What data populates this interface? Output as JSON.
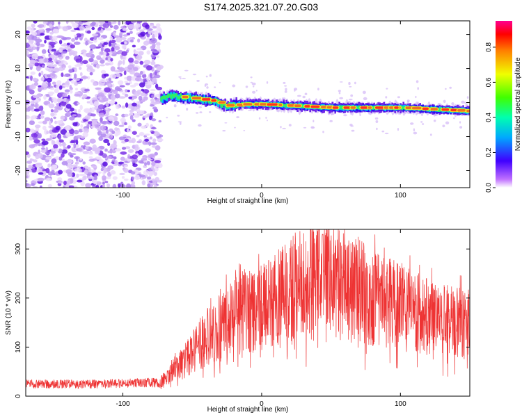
{
  "title": "S174.2025.321.07.20.G03",
  "chart_data": [
    {
      "type": "heatmap",
      "name": "spectrogram",
      "xlabel": "Height of straight line (km)",
      "ylabel": "Frequency (Hz)",
      "xlim": [
        -170,
        150
      ],
      "ylim": [
        -25,
        24
      ],
      "xticks": [
        -100,
        0,
        100
      ],
      "yticks": [
        -20,
        -10,
        0,
        10,
        20
      ],
      "noise_region_x": [
        -170,
        -73
      ],
      "ridge": [
        {
          "x": -73,
          "f": 1.0
        },
        {
          "x": -65,
          "f": 2.0
        },
        {
          "x": -55,
          "f": 1.5
        },
        {
          "x": -45,
          "f": 1.0
        },
        {
          "x": -35,
          "f": 0.5
        },
        {
          "x": -25,
          "f": -1.0
        },
        {
          "x": -15,
          "f": -0.5
        },
        {
          "x": 0,
          "f": -0.5
        },
        {
          "x": 25,
          "f": -1.0
        },
        {
          "x": 50,
          "f": -1.5
        },
        {
          "x": 75,
          "f": -1.5
        },
        {
          "x": 100,
          "f": -1.5
        },
        {
          "x": 125,
          "f": -2.0
        },
        {
          "x": 150,
          "f": -2.5
        }
      ],
      "colorbar": {
        "label": "Normalized spectral amplitude",
        "min": 0.0,
        "max": 0.95,
        "ticks": [
          "0.0",
          "0.2",
          "0.4",
          "0.6",
          "0.8"
        ]
      }
    },
    {
      "type": "line",
      "name": "snr",
      "xlabel": "Height of straight line (km)",
      "ylabel": "SNR (10 * v/v)",
      "xlim": [
        -170,
        150
      ],
      "ylim": [
        0,
        340
      ],
      "xticks": [
        -100,
        0,
        100
      ],
      "yticks": [
        0,
        100,
        200,
        300
      ],
      "color": "#ee3333",
      "envelope": [
        {
          "x": -170,
          "y": 25
        },
        {
          "x": -120,
          "y": 25
        },
        {
          "x": -73,
          "y": 28
        },
        {
          "x": -60,
          "y": 60
        },
        {
          "x": -40,
          "y": 120
        },
        {
          "x": -20,
          "y": 165
        },
        {
          "x": 0,
          "y": 185
        },
        {
          "x": 20,
          "y": 220
        },
        {
          "x": 40,
          "y": 250
        },
        {
          "x": 60,
          "y": 235
        },
        {
          "x": 80,
          "y": 205
        },
        {
          "x": 100,
          "y": 185
        },
        {
          "x": 120,
          "y": 165
        },
        {
          "x": 150,
          "y": 150
        }
      ],
      "peak": {
        "x": 44,
        "y": 330
      }
    }
  ]
}
